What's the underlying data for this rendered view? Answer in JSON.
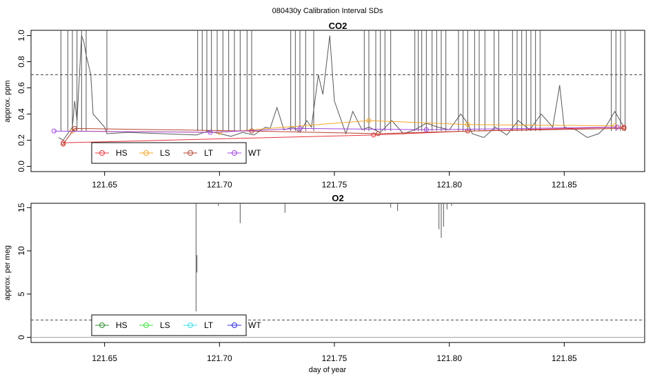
{
  "figure": {
    "title": "080430y   Calibration Interval SDs"
  },
  "chart_data": [
    {
      "type": "line",
      "title": "CO2",
      "xlabel": "",
      "ylabel": "approx. ppm",
      "xlim": [
        121.618,
        121.885
      ],
      "ylim": [
        -0.04,
        1.04
      ],
      "xticks": [
        "121.65",
        "121.70",
        "121.75",
        "121.80",
        "121.85"
      ],
      "yticks": [
        "0.0",
        "0.2",
        "0.4",
        "0.6",
        "0.8",
        "1.0"
      ],
      "threshold": 0.7,
      "legend_position": "bottom-left",
      "trace_x": [
        121.63,
        121.632,
        121.634,
        121.636,
        121.637,
        121.638,
        121.64,
        121.641,
        121.642,
        121.644,
        121.645,
        121.65,
        121.651,
        121.66,
        121.69,
        121.695,
        121.7,
        121.705,
        121.71,
        121.715,
        121.72,
        121.722,
        121.725,
        121.728,
        121.732,
        121.735,
        121.738,
        121.74,
        121.743,
        121.745,
        121.748,
        121.75,
        121.755,
        121.758,
        121.762,
        121.765,
        121.77,
        121.775,
        121.78,
        121.785,
        121.79,
        121.795,
        121.8,
        121.805,
        121.808,
        121.81,
        121.815,
        121.82,
        121.825,
        121.83,
        121.835,
        121.84,
        121.845,
        121.848,
        121.85,
        121.855,
        121.86,
        121.865,
        121.868,
        121.872,
        121.876
      ],
      "trace_y": [
        0.22,
        0.2,
        0.25,
        0.3,
        0.5,
        0.35,
        1.0,
        0.95,
        0.85,
        0.7,
        0.4,
        0.3,
        0.25,
        0.26,
        0.24,
        0.27,
        0.25,
        0.23,
        0.26,
        0.24,
        0.3,
        0.29,
        0.45,
        0.28,
        0.3,
        0.26,
        0.35,
        0.3,
        0.7,
        0.55,
        1.0,
        0.5,
        0.25,
        0.42,
        0.28,
        0.3,
        0.26,
        0.35,
        0.25,
        0.28,
        0.33,
        0.3,
        0.28,
        0.4,
        0.33,
        0.25,
        0.22,
        0.3,
        0.24,
        0.35,
        0.28,
        0.4,
        0.3,
        0.62,
        0.3,
        0.28,
        0.22,
        0.25,
        0.3,
        0.42,
        0.3
      ],
      "spikes_x": [
        121.631,
        121.634,
        121.636,
        121.638,
        121.64,
        121.642,
        121.651,
        121.6905,
        121.6925,
        121.6945,
        121.6965,
        121.699,
        121.7015,
        121.704,
        121.7065,
        121.709,
        121.712,
        121.714,
        121.731,
        121.733,
        121.735,
        121.7375,
        121.741,
        121.763,
        121.765,
        121.768,
        121.77,
        121.772,
        121.7745,
        121.785,
        121.7865,
        121.788,
        121.79,
        121.7925,
        121.7945,
        121.7965,
        121.7985,
        121.804,
        121.806,
        121.808,
        121.811,
        121.813,
        121.8155,
        121.8195,
        121.8215,
        121.8275,
        121.8295,
        121.8315,
        121.8335,
        121.8355,
        121.8375,
        121.8395,
        121.8705,
        121.8725,
        121.8745,
        121.8765
      ],
      "series": [
        {
          "name": "HS",
          "color": "#e8303a",
          "x": [
            121.632,
            121.767,
            121.808,
            121.876
          ],
          "y": [
            0.18,
            0.24,
            0.27,
            0.3
          ]
        },
        {
          "name": "LS",
          "color": "#f5a623",
          "x": [
            121.636,
            121.7,
            121.765,
            121.808,
            121.872
          ],
          "y": [
            0.27,
            0.26,
            0.35,
            0.32,
            0.31
          ]
        },
        {
          "name": "LT",
          "color": "#b5402e",
          "x": [
            121.632,
            121.637,
            121.714,
            121.769,
            121.808,
            121.876
          ],
          "y": [
            0.17,
            0.29,
            0.27,
            0.25,
            0.27,
            0.29
          ]
        },
        {
          "name": "WT",
          "color": "#a040e0",
          "x": [
            121.628,
            121.696,
            121.735,
            121.79,
            121.873
          ],
          "y": [
            0.27,
            0.26,
            0.29,
            0.28,
            0.3
          ]
        }
      ]
    },
    {
      "type": "line",
      "title": "O2",
      "xlabel": "day of year",
      "ylabel": "approx. per meg",
      "xlim": [
        121.618,
        121.885
      ],
      "ylim": [
        -0.6,
        15.5
      ],
      "xticks": [
        "121.65",
        "121.70",
        "121.75",
        "121.80",
        "121.85"
      ],
      "yticks": [
        "0",
        "5",
        "10",
        "15"
      ],
      "threshold": 2,
      "legend_position": "bottom-left",
      "spikes": [
        {
          "x": 121.6898,
          "top": 15.5,
          "bottom": 3
        },
        {
          "x": 121.6902,
          "top": 9.5,
          "bottom": 7.5
        },
        {
          "x": 121.6995,
          "top": 15.5,
          "bottom": 15.2
        },
        {
          "x": 121.709,
          "top": 15.5,
          "bottom": 13.2
        },
        {
          "x": 121.7285,
          "top": 15.5,
          "bottom": 14.4
        },
        {
          "x": 121.7745,
          "top": 15.5,
          "bottom": 15.0
        },
        {
          "x": 121.7775,
          "top": 15.5,
          "bottom": 14.6
        },
        {
          "x": 121.7955,
          "top": 15.5,
          "bottom": 12.5
        },
        {
          "x": 121.7965,
          "top": 15.5,
          "bottom": 11.5
        },
        {
          "x": 121.7975,
          "top": 15.5,
          "bottom": 12.8
        },
        {
          "x": 121.799,
          "top": 15.5,
          "bottom": 14.8
        },
        {
          "x": 121.801,
          "top": 15.5,
          "bottom": 15.2
        }
      ],
      "series": [
        {
          "name": "HS",
          "color": "#2e8b2e",
          "x": [],
          "y": []
        },
        {
          "name": "LS",
          "color": "#3ee33e",
          "x": [],
          "y": []
        },
        {
          "name": "LT",
          "color": "#36e0ec",
          "x": [],
          "y": []
        },
        {
          "name": "WT",
          "color": "#2a2ae0",
          "x": [],
          "y": []
        }
      ]
    }
  ]
}
